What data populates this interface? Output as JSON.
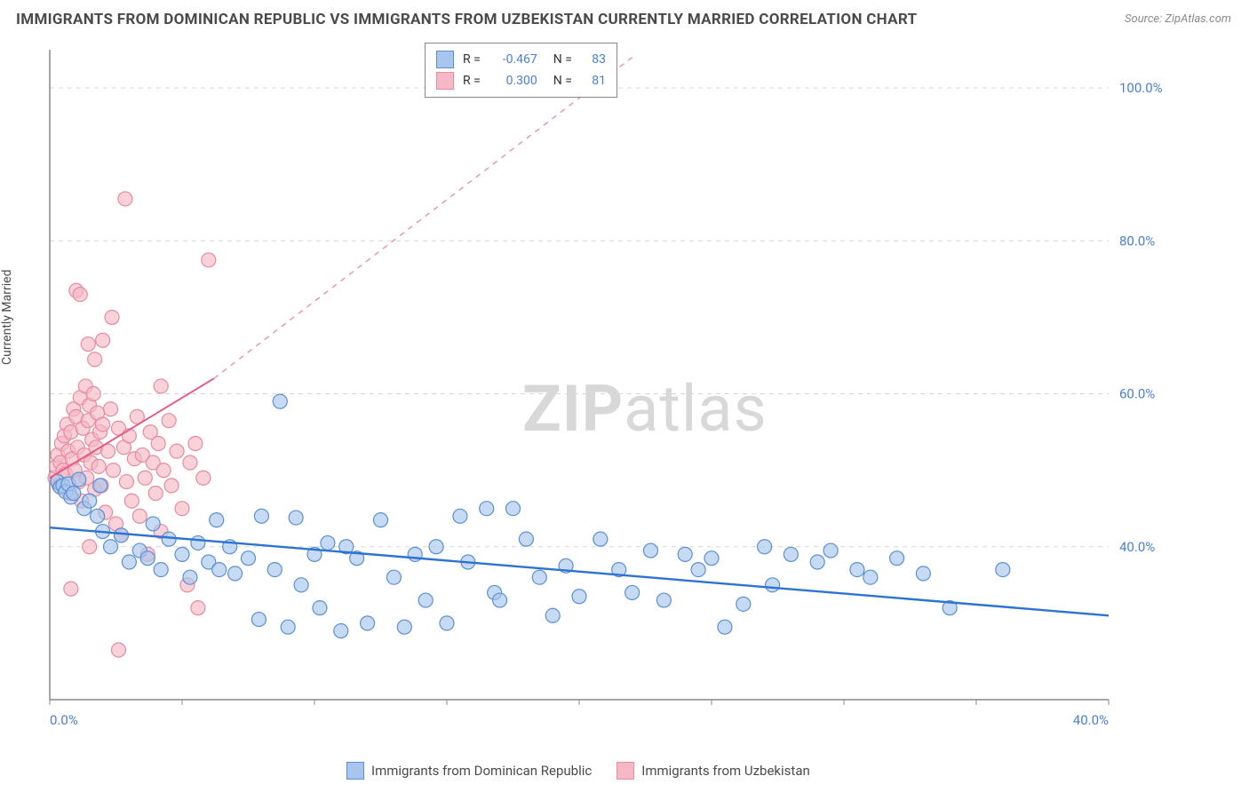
{
  "title": "IMMIGRANTS FROM DOMINICAN REPUBLIC VS IMMIGRANTS FROM UZBEKISTAN CURRENTLY MARRIED CORRELATION CHART",
  "source": "Source: ZipAtlas.com",
  "y_axis_label": "Currently Married",
  "watermark": "ZIPatlas",
  "chart": {
    "type": "scatter-correlation",
    "xlim": [
      0,
      40
    ],
    "ylim": [
      20,
      105
    ],
    "x_ticks": [
      0,
      40
    ],
    "x_tick_labels": [
      "0.0%",
      "40.0%"
    ],
    "y_ticks": [
      40,
      60,
      80,
      100
    ],
    "y_tick_labels": [
      "40.0%",
      "60.0%",
      "80.0%",
      "100.0%"
    ],
    "background_color": "#ffffff",
    "grid_color": "#d6d6d6",
    "axis_color": "#888888",
    "marker_radius": 8,
    "marker_stroke_width": 1.2,
    "series": [
      {
        "name": "Immigrants from Dominican Republic",
        "color_fill": "#a8c6ed",
        "color_stroke": "#5a90d6",
        "r": "-0.467",
        "n": "83",
        "regression": {
          "x1": 0,
          "y1": 42.5,
          "x2": 40,
          "y2": 31.0,
          "dash": false,
          "color": "#2d73d2",
          "width": 2.4
        },
        "points": [
          [
            0.3,
            48.5
          ],
          [
            0.4,
            47.8
          ],
          [
            0.5,
            48.0
          ],
          [
            0.6,
            47.2
          ],
          [
            0.7,
            48.2
          ],
          [
            0.8,
            46.5
          ],
          [
            0.9,
            47.0
          ],
          [
            1.1,
            48.8
          ],
          [
            1.3,
            45.0
          ],
          [
            1.5,
            46.0
          ],
          [
            1.8,
            44.0
          ],
          [
            1.9,
            48.0
          ],
          [
            2.0,
            42.0
          ],
          [
            2.3,
            40.0
          ],
          [
            2.7,
            41.5
          ],
          [
            3.0,
            38.0
          ],
          [
            3.4,
            39.5
          ],
          [
            3.7,
            38.5
          ],
          [
            3.9,
            43.0
          ],
          [
            4.2,
            37.0
          ],
          [
            4.5,
            41.0
          ],
          [
            5.0,
            39.0
          ],
          [
            5.3,
            36.0
          ],
          [
            5.6,
            40.5
          ],
          [
            6.0,
            38.0
          ],
          [
            6.3,
            43.5
          ],
          [
            6.4,
            37.0
          ],
          [
            6.8,
            40.0
          ],
          [
            7.0,
            36.5
          ],
          [
            7.5,
            38.5
          ],
          [
            7.9,
            30.5
          ],
          [
            8.0,
            44.0
          ],
          [
            8.5,
            37.0
          ],
          [
            8.7,
            59.0
          ],
          [
            9.0,
            29.5
          ],
          [
            9.3,
            43.8
          ],
          [
            9.5,
            35.0
          ],
          [
            10.0,
            39.0
          ],
          [
            10.2,
            32.0
          ],
          [
            10.5,
            40.5
          ],
          [
            11.0,
            29.0
          ],
          [
            11.2,
            40.0
          ],
          [
            11.6,
            38.5
          ],
          [
            12.0,
            30.0
          ],
          [
            12.5,
            43.5
          ],
          [
            13.0,
            36.0
          ],
          [
            13.4,
            29.5
          ],
          [
            13.8,
            39.0
          ],
          [
            14.2,
            33.0
          ],
          [
            14.6,
            40.0
          ],
          [
            15.0,
            30.0
          ],
          [
            15.5,
            44.0
          ],
          [
            15.8,
            38.0
          ],
          [
            16.5,
            45.0
          ],
          [
            16.8,
            34.0
          ],
          [
            17.0,
            33.0
          ],
          [
            17.5,
            45.0
          ],
          [
            18.0,
            41.0
          ],
          [
            18.5,
            36.0
          ],
          [
            19.0,
            31.0
          ],
          [
            19.5,
            37.5
          ],
          [
            20.0,
            33.5
          ],
          [
            20.8,
            41.0
          ],
          [
            21.5,
            37.0
          ],
          [
            22.0,
            34.0
          ],
          [
            22.7,
            39.5
          ],
          [
            23.2,
            33.0
          ],
          [
            24.0,
            39.0
          ],
          [
            24.5,
            37.0
          ],
          [
            25.0,
            38.5
          ],
          [
            25.5,
            29.5
          ],
          [
            26.2,
            32.5
          ],
          [
            27.0,
            40.0
          ],
          [
            27.3,
            35.0
          ],
          [
            28.0,
            39.0
          ],
          [
            29.0,
            38.0
          ],
          [
            29.5,
            39.5
          ],
          [
            30.5,
            37.0
          ],
          [
            31.0,
            36.0
          ],
          [
            32.0,
            38.5
          ],
          [
            33.0,
            36.5
          ],
          [
            34.0,
            32.0
          ],
          [
            36.0,
            37.0
          ]
        ]
      },
      {
        "name": "Immigrants from Uzbekistan",
        "color_fill": "#f4b9c5",
        "color_stroke": "#e88ba0",
        "r": "0.300",
        "n": "81",
        "regression_solid": {
          "x1": 0,
          "y1": 49.0,
          "x2": 6.2,
          "y2": 62.0,
          "color": "#e65a85",
          "width": 2.0
        },
        "regression_dash": {
          "x1": 6.2,
          "y1": 62.0,
          "x2": 22.0,
          "y2": 104.0,
          "color": "#e88ba0",
          "width": 1.3,
          "dash": "6,6"
        },
        "points": [
          [
            0.2,
            49.0
          ],
          [
            0.25,
            50.5
          ],
          [
            0.3,
            52.0
          ],
          [
            0.35,
            48.0
          ],
          [
            0.4,
            51.0
          ],
          [
            0.45,
            53.5
          ],
          [
            0.5,
            50.0
          ],
          [
            0.55,
            54.5
          ],
          [
            0.6,
            49.5
          ],
          [
            0.65,
            56.0
          ],
          [
            0.7,
            52.5
          ],
          [
            0.75,
            47.0
          ],
          [
            0.8,
            55.0
          ],
          [
            0.85,
            51.5
          ],
          [
            0.9,
            58.0
          ],
          [
            0.95,
            50.0
          ],
          [
            1.0,
            57.0
          ],
          [
            1.05,
            53.0
          ],
          [
            1.1,
            48.5
          ],
          [
            1.15,
            59.5
          ],
          [
            1.2,
            46.0
          ],
          [
            1.25,
            55.5
          ],
          [
            1.3,
            52.0
          ],
          [
            1.35,
            61.0
          ],
          [
            1.4,
            49.0
          ],
          [
            1.45,
            56.5
          ],
          [
            1.5,
            58.5
          ],
          [
            1.55,
            51.0
          ],
          [
            1.6,
            54.0
          ],
          [
            1.65,
            60.0
          ],
          [
            1.7,
            47.5
          ],
          [
            1.75,
            53.0
          ],
          [
            1.8,
            57.5
          ],
          [
            1.85,
            50.5
          ],
          [
            1.9,
            55.0
          ],
          [
            1.95,
            48.0
          ],
          [
            2.0,
            56.0
          ],
          [
            2.1,
            44.5
          ],
          [
            2.2,
            52.5
          ],
          [
            2.3,
            58.0
          ],
          [
            2.4,
            50.0
          ],
          [
            2.5,
            43.0
          ],
          [
            2.6,
            55.5
          ],
          [
            2.7,
            41.5
          ],
          [
            2.8,
            53.0
          ],
          [
            2.85,
            85.5
          ],
          [
            2.9,
            48.5
          ],
          [
            3.0,
            54.5
          ],
          [
            3.1,
            46.0
          ],
          [
            3.2,
            51.5
          ],
          [
            3.3,
            57.0
          ],
          [
            3.4,
            44.0
          ],
          [
            3.5,
            52.0
          ],
          [
            3.6,
            49.0
          ],
          [
            3.7,
            39.0
          ],
          [
            3.8,
            55.0
          ],
          [
            3.9,
            51.0
          ],
          [
            4.0,
            47.0
          ],
          [
            4.1,
            53.5
          ],
          [
            4.2,
            42.0
          ],
          [
            4.3,
            50.0
          ],
          [
            4.5,
            56.5
          ],
          [
            4.6,
            48.0
          ],
          [
            4.8,
            52.5
          ],
          [
            5.0,
            45.0
          ],
          [
            5.2,
            35.0
          ],
          [
            5.3,
            51.0
          ],
          [
            5.5,
            53.5
          ],
          [
            5.6,
            32.0
          ],
          [
            5.8,
            49.0
          ],
          [
            6.0,
            77.5
          ],
          [
            1.0,
            73.5
          ],
          [
            1.15,
            73.0
          ],
          [
            1.45,
            66.5
          ],
          [
            2.0,
            67.0
          ],
          [
            2.35,
            70.0
          ],
          [
            4.2,
            61.0
          ],
          [
            1.7,
            64.5
          ],
          [
            2.6,
            26.5
          ],
          [
            0.8,
            34.5
          ],
          [
            1.5,
            40.0
          ]
        ]
      }
    ]
  },
  "bottom_legend": [
    {
      "label": "Immigrants from Dominican Republic",
      "fill": "#a8c6ed",
      "stroke": "#5a90d6"
    },
    {
      "label": "Immigrants from Uzbekistan",
      "fill": "#f4b9c5",
      "stroke": "#e88ba0"
    }
  ]
}
